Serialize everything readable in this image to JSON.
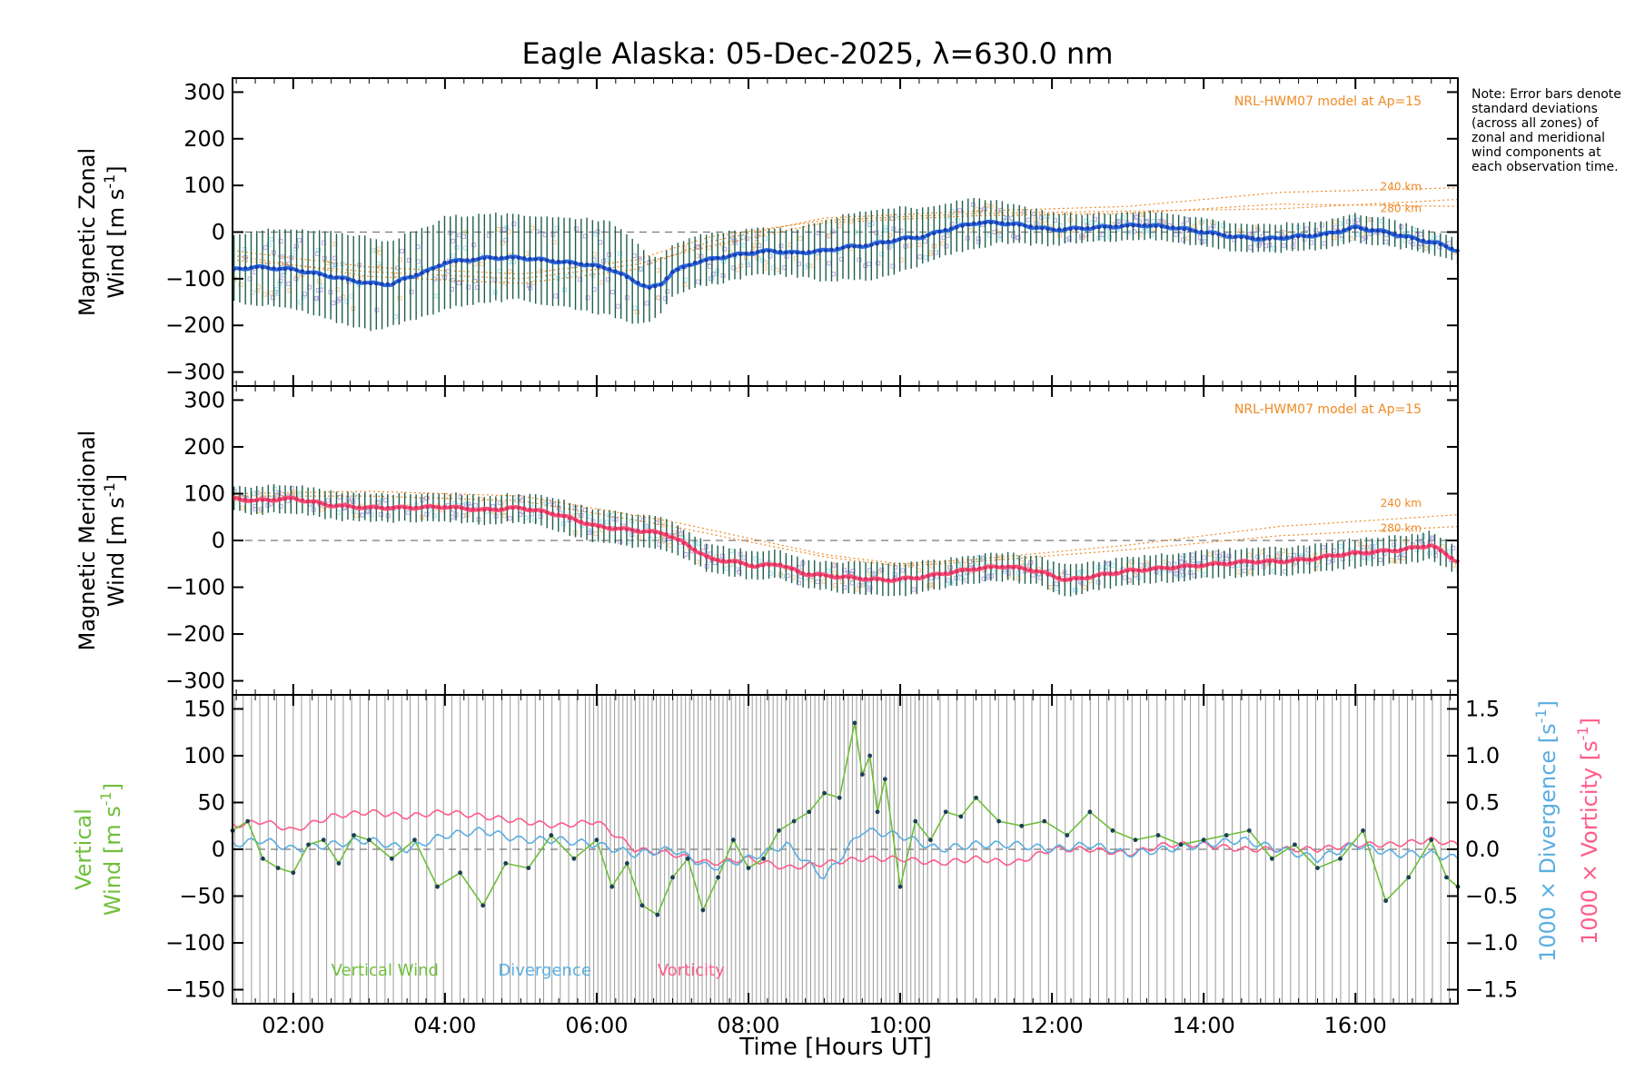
{
  "title": "Eagle Alaska: 05-Dec-2025, λ=630.0 nm",
  "note": "Note: Error bars denote standard deviations (across all zones) of zonal and meridional wind components at each observation time.",
  "xlabel": "Time [Hours UT]",
  "colors": {
    "zonal": "#2c6be0",
    "meridional": "#ff4f7a",
    "vertical": "#6fbf3a",
    "divergence": "#5aaee0",
    "vorticity": "#ff5c8a",
    "model": "#f08a24",
    "errorbar": "#1f5f4a",
    "scatter": "#b9a8e6"
  },
  "chart_data": [
    {
      "type": "line",
      "panel": "zonal",
      "ylabel_line1": "Magnetic Zonal",
      "ylabel_line2": "Wind [m s",
      "ylabel_sup": "-1",
      "ylabel_close": "]",
      "ylim": [
        -330,
        330
      ],
      "xlim": [
        1.2,
        17.35
      ],
      "xticks": [
        2,
        4,
        6,
        8,
        10,
        12,
        14,
        16
      ],
      "xtick_labels": [
        "02:00",
        "04:00",
        "06:00",
        "08:00",
        "10:00",
        "12:00",
        "14:00",
        "16:00"
      ],
      "yticks": [
        -300,
        -200,
        -100,
        0,
        100,
        200,
        300
      ],
      "ytick_labels": [
        "−300",
        "−200",
        "−100",
        "0",
        "100",
        "200",
        "300"
      ],
      "model_label": "NRL-HWM07 model at Ap=15",
      "model_alt_labels": [
        "240 km",
        "280 km"
      ],
      "series": {
        "name": "Magnetic Zonal Wind",
        "x": [
          1.2,
          1.5,
          2.0,
          2.5,
          3.0,
          3.3,
          3.5,
          3.8,
          4.0,
          4.3,
          4.6,
          5.0,
          5.3,
          5.6,
          5.9,
          6.2,
          6.5,
          6.7,
          6.85,
          7.0,
          7.3,
          7.6,
          8.0,
          8.3,
          8.6,
          9.0,
          9.3,
          9.6,
          10.0,
          10.3,
          10.6,
          11.0,
          11.3,
          11.6,
          12.0,
          12.4,
          12.8,
          13.2,
          13.6,
          14.0,
          14.4,
          14.8,
          15.2,
          15.6,
          16.0,
          16.4,
          16.8,
          17.1,
          17.35
        ],
        "y": [
          -80,
          -75,
          -80,
          -95,
          -110,
          -112,
          -98,
          -82,
          -65,
          -60,
          -55,
          -55,
          -60,
          -65,
          -70,
          -80,
          -105,
          -120,
          -112,
          -85,
          -65,
          -55,
          -45,
          -40,
          -45,
          -40,
          -32,
          -28,
          -15,
          -10,
          5,
          20,
          20,
          15,
          5,
          8,
          12,
          15,
          10,
          0,
          -10,
          -15,
          -10,
          -5,
          10,
          0,
          -15,
          -25,
          -40
        ]
      },
      "error_half": [
        70,
        80,
        85,
        95,
        100,
        90,
        95,
        95,
        100,
        95,
        95,
        90,
        95,
        95,
        100,
        100,
        90,
        70,
        60,
        55,
        55,
        55,
        50,
        50,
        50,
        65,
        70,
        75,
        70,
        60,
        55,
        55,
        45,
        40,
        35,
        30,
        30,
        30,
        30,
        30,
        30,
        30,
        30,
        30,
        30,
        30,
        25,
        25,
        25
      ],
      "model_curves": [
        {
          "alt": "240 km",
          "x": [
            1.2,
            3.0,
            5.0,
            6.5,
            7.5,
            9.0,
            11.0,
            13.0,
            15.0,
            17.35
          ],
          "y": [
            -50,
            -95,
            -110,
            -80,
            -20,
            30,
            45,
            55,
            85,
            95
          ]
        },
        {
          "alt": "280 km",
          "x": [
            1.2,
            3.0,
            5.0,
            6.5,
            7.5,
            9.0,
            11.0,
            13.0,
            15.0,
            17.35
          ],
          "y": [
            -60,
            -85,
            -100,
            -70,
            -30,
            20,
            35,
            40,
            60,
            55
          ]
        },
        {
          "alt": "",
          "x": [
            1.2,
            3.0,
            5.0,
            6.5,
            7.5,
            9.0,
            11.0,
            13.0,
            15.0,
            17.35
          ],
          "y": [
            -40,
            -75,
            -90,
            -60,
            -10,
            25,
            40,
            45,
            50,
            70
          ]
        }
      ]
    },
    {
      "type": "line",
      "panel": "meridional",
      "ylabel_line1": "Magnetic Meridional",
      "ylabel_line2": "Wind [m s",
      "ylabel_sup": "-1",
      "ylabel_close": "]",
      "ylim": [
        -330,
        330
      ],
      "xlim": [
        1.2,
        17.35
      ],
      "yticks": [
        -300,
        -200,
        -100,
        0,
        100,
        200,
        300
      ],
      "ytick_labels": [
        "−300",
        "−200",
        "−100",
        "0",
        "100",
        "200",
        "300"
      ],
      "model_label": "NRL-HWM07 model at Ap=15",
      "model_alt_labels": [
        "240 km",
        "280 km"
      ],
      "series": {
        "name": "Magnetic Meridional Wind",
        "x": [
          1.2,
          1.5,
          2.0,
          2.5,
          3.0,
          3.5,
          4.0,
          4.5,
          5.0,
          5.5,
          6.0,
          6.3,
          6.6,
          6.9,
          7.2,
          7.5,
          7.8,
          8.1,
          8.4,
          8.7,
          9.0,
          9.4,
          9.8,
          10.2,
          10.6,
          11.0,
          11.4,
          11.8,
          12.2,
          12.6,
          13.0,
          13.4,
          13.8,
          14.2,
          14.6,
          15.0,
          15.4,
          15.8,
          16.2,
          16.6,
          17.0,
          17.35
        ],
        "y": [
          90,
          85,
          90,
          75,
          70,
          70,
          72,
          65,
          70,
          55,
          30,
          25,
          20,
          15,
          -10,
          -40,
          -45,
          -55,
          -50,
          -70,
          -75,
          -80,
          -85,
          -80,
          -70,
          -60,
          -55,
          -65,
          -85,
          -75,
          -65,
          -60,
          -55,
          -50,
          -45,
          -45,
          -40,
          -30,
          -25,
          -20,
          -10,
          -45
        ]
      },
      "error_half": [
        25,
        30,
        30,
        30,
        30,
        30,
        30,
        30,
        30,
        35,
        35,
        35,
        35,
        35,
        30,
        30,
        30,
        30,
        30,
        30,
        30,
        35,
        35,
        35,
        30,
        30,
        30,
        30,
        35,
        30,
        30,
        30,
        30,
        30,
        30,
        30,
        30,
        30,
        30,
        30,
        30,
        30
      ],
      "model_curves": [
        {
          "alt": "240 km",
          "x": [
            1.2,
            3.0,
            5.0,
            7.0,
            9.0,
            10.0,
            11.0,
            13.0,
            15.0,
            17.35
          ],
          "y": [
            100,
            105,
            95,
            40,
            -30,
            -50,
            -40,
            -10,
            30,
            55
          ]
        },
        {
          "alt": "280 km",
          "x": [
            1.2,
            3.0,
            5.0,
            7.0,
            9.0,
            10.0,
            11.0,
            13.0,
            15.0,
            17.35
          ],
          "y": [
            95,
            95,
            85,
            30,
            -35,
            -55,
            -45,
            -20,
            10,
            30
          ]
        }
      ]
    },
    {
      "type": "line",
      "panel": "vertical",
      "ylabel_line1": "Vertical",
      "ylabel_line2": "Wind [m s",
      "ylabel_sup": "-1",
      "ylabel_close": "]",
      "ylim": [
        -165,
        165
      ],
      "xlim": [
        1.2,
        17.35
      ],
      "yticks": [
        -150,
        -100,
        -50,
        0,
        50,
        100,
        150
      ],
      "ytick_labels": [
        "−150",
        "−100",
        "−50",
        "0",
        "50",
        "100",
        "150"
      ],
      "y2lim": [
        -1.65,
        1.65
      ],
      "y2ticks": [
        -1.5,
        -1.0,
        -0.5,
        0.0,
        0.5,
        1.0,
        1.5
      ],
      "y2tick_labels": [
        "−1.5",
        "−1.0",
        "−0.5",
        "0.0",
        "0.5",
        "1.0",
        "1.5"
      ],
      "y2label_divergence": "1000 × Divergence [s",
      "y2label_vorticity": "1000 × Vorticity [s",
      "y2label_sup": "-1",
      "y2label_close": "]",
      "legend": [
        "Vertical Wind",
        "Divergence",
        "Vorticity"
      ],
      "series": [
        {
          "name": "Vertical Wind",
          "x": [
            1.2,
            1.4,
            1.6,
            1.8,
            2.0,
            2.2,
            2.4,
            2.6,
            2.8,
            3.0,
            3.3,
            3.6,
            3.9,
            4.2,
            4.5,
            4.8,
            5.1,
            5.4,
            5.7,
            6.0,
            6.2,
            6.4,
            6.6,
            6.8,
            7.0,
            7.2,
            7.4,
            7.6,
            7.8,
            8.0,
            8.2,
            8.4,
            8.6,
            8.8,
            9.0,
            9.2,
            9.4,
            9.5,
            9.6,
            9.7,
            9.8,
            10.0,
            10.2,
            10.4,
            10.6,
            10.8,
            11.0,
            11.3,
            11.6,
            11.9,
            12.2,
            12.5,
            12.8,
            13.1,
            13.4,
            13.7,
            14.0,
            14.3,
            14.6,
            14.9,
            15.2,
            15.5,
            15.8,
            16.1,
            16.4,
            16.7,
            17.0,
            17.2,
            17.35
          ],
          "y": [
            20,
            30,
            -10,
            -20,
            -25,
            5,
            10,
            -15,
            15,
            10,
            -10,
            10,
            -40,
            -25,
            -60,
            -15,
            -20,
            15,
            -10,
            10,
            -40,
            -15,
            -60,
            -70,
            -30,
            -10,
            -65,
            -30,
            10,
            -20,
            -10,
            20,
            30,
            40,
            60,
            55,
            135,
            80,
            100,
            40,
            75,
            -40,
            30,
            10,
            40,
            35,
            55,
            30,
            25,
            30,
            15,
            40,
            20,
            10,
            15,
            5,
            10,
            15,
            20,
            -10,
            5,
            -20,
            -10,
            20,
            -55,
            -30,
            10,
            -30,
            -40
          ]
        },
        {
          "name": "1000 × Divergence",
          "x": [
            1.2,
            1.6,
            2.0,
            2.5,
            3.0,
            3.5,
            4.0,
            4.5,
            5.0,
            5.5,
            6.0,
            6.5,
            7.0,
            7.5,
            8.0,
            8.5,
            9.0,
            9.5,
            10.0,
            10.5,
            11.0,
            11.5,
            12.0,
            12.5,
            13.0,
            13.5,
            14.0,
            14.5,
            15.0,
            15.5,
            16.0,
            16.5,
            17.0,
            17.35
          ],
          "y": [
            0.05,
            0.1,
            0.0,
            0.05,
            0.1,
            0.0,
            0.15,
            0.2,
            0.1,
            0.1,
            0.05,
            -0.05,
            0.0,
            -0.2,
            -0.1,
            0.05,
            -0.3,
            0.2,
            0.15,
            0.0,
            0.05,
            0.05,
            0.0,
            0.05,
            -0.05,
            0.0,
            0.05,
            0.1,
            0.0,
            -0.1,
            0.05,
            -0.05,
            -0.05,
            -0.1
          ]
        },
        {
          "name": "1000 × Vorticity",
          "x": [
            1.2,
            1.6,
            2.0,
            2.5,
            3.0,
            3.5,
            4.0,
            4.5,
            5.0,
            5.5,
            6.0,
            6.5,
            7.0,
            7.5,
            8.0,
            8.5,
            9.0,
            9.5,
            10.0,
            10.5,
            11.0,
            11.5,
            12.0,
            12.5,
            13.0,
            13.5,
            14.0,
            14.5,
            15.0,
            15.5,
            16.0,
            16.5,
            17.0,
            17.35
          ],
          "y": [
            0.25,
            0.3,
            0.2,
            0.35,
            0.4,
            0.35,
            0.4,
            0.35,
            0.3,
            0.25,
            0.3,
            0.0,
            -0.05,
            -0.15,
            -0.1,
            -0.2,
            -0.15,
            -0.1,
            -0.1,
            -0.15,
            -0.1,
            -0.15,
            0.0,
            0.0,
            -0.05,
            0.05,
            0.05,
            0.0,
            0.0,
            0.0,
            0.05,
            0.05,
            0.1,
            0.05
          ]
        }
      ]
    }
  ]
}
